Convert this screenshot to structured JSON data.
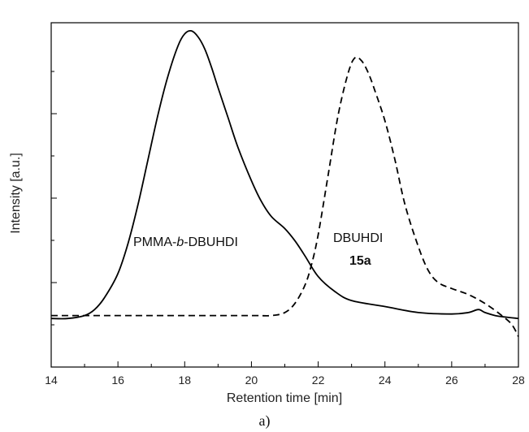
{
  "chart_data": {
    "type": "line",
    "xlabel": "Retention time [min]",
    "ylabel": "Intensity [a.u.]",
    "xlim": [
      14,
      28
    ],
    "ylim": [
      0,
      1
    ],
    "x_ticks": [
      "14",
      "16",
      "18",
      "20",
      "22",
      "24",
      "26",
      "28"
    ],
    "y_tick_labels_shown": false,
    "grid": false,
    "legend": "none",
    "annotations": {
      "series1_prefix": "PMMA-",
      "series1_italic": "b",
      "series1_suffix": "-DBUHDI",
      "series2_line1": "DBUHDI",
      "series2_line2": "15a"
    },
    "series": [
      {
        "style": "solid",
        "x": [
          14.0,
          14.5,
          15.0,
          15.3,
          15.6,
          16.0,
          16.3,
          16.6,
          16.9,
          17.2,
          17.5,
          17.8,
          18.0,
          18.2,
          18.4,
          18.6,
          18.8,
          19.0,
          19.3,
          19.6,
          20.0,
          20.3,
          20.6,
          21.0,
          21.3,
          21.6,
          22.0,
          22.5,
          23.0,
          24.0,
          25.0,
          26.0,
          26.5,
          26.8,
          27.0,
          27.3,
          27.6,
          28.0
        ],
        "y": [
          0.04,
          0.04,
          0.05,
          0.07,
          0.11,
          0.19,
          0.29,
          0.42,
          0.57,
          0.72,
          0.85,
          0.95,
          0.99,
          1.0,
          0.98,
          0.94,
          0.88,
          0.81,
          0.71,
          0.61,
          0.5,
          0.43,
          0.38,
          0.34,
          0.3,
          0.25,
          0.18,
          0.13,
          0.1,
          0.08,
          0.06,
          0.055,
          0.06,
          0.07,
          0.06,
          0.05,
          0.045,
          0.04
        ]
      },
      {
        "style": "dashed",
        "x": [
          14.0,
          15.0,
          16.0,
          18.0,
          20.0,
          20.6,
          21.0,
          21.3,
          21.6,
          21.8,
          22.0,
          22.3,
          22.6,
          22.9,
          23.1,
          23.3,
          23.5,
          23.7,
          24.0,
          24.3,
          24.6,
          25.0,
          25.3,
          25.6,
          26.0,
          26.5,
          27.0,
          27.5,
          27.8,
          28.0
        ],
        "y": [
          0.05,
          0.05,
          0.05,
          0.05,
          0.05,
          0.05,
          0.06,
          0.09,
          0.15,
          0.22,
          0.32,
          0.52,
          0.72,
          0.86,
          0.91,
          0.9,
          0.86,
          0.8,
          0.7,
          0.57,
          0.42,
          0.28,
          0.2,
          0.16,
          0.14,
          0.12,
          0.09,
          0.05,
          0.02,
          -0.02
        ]
      }
    ]
  },
  "caption": "a)"
}
